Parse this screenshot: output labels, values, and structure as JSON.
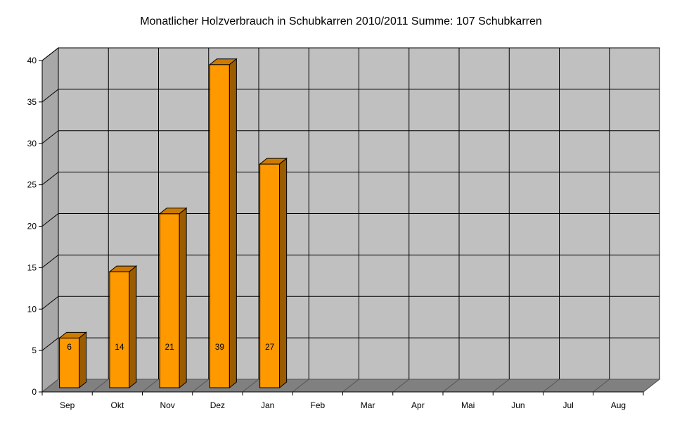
{
  "chart_data": {
    "type": "bar",
    "title": "Monatlicher Holzverbrauch in Schubkarren 2010/2011   Summe: 107 Schubkarren",
    "xlabel": "",
    "ylabel": "",
    "categories": [
      "Sep",
      "Okt",
      "Nov",
      "Dez",
      "Jan",
      "Feb",
      "Mar",
      "Apr",
      "Mai",
      "Jun",
      "Jul",
      "Aug"
    ],
    "values": [
      6,
      14,
      21,
      39,
      27,
      null,
      null,
      null,
      null,
      null,
      null,
      null
    ],
    "ylim": [
      0,
      40
    ],
    "yticks": [
      0,
      5,
      10,
      15,
      20,
      25,
      30,
      35,
      40
    ],
    "grid": true,
    "style": "3d",
    "colors": {
      "bar_front": "#ff9900",
      "bar_top": "#cc7a00",
      "bar_side": "#995c00",
      "bar_outline": "#000000",
      "back_wall": "#c0c0c0",
      "side_wall": "#a8a8a8",
      "floor": "#808080",
      "grid": "#000000"
    }
  }
}
